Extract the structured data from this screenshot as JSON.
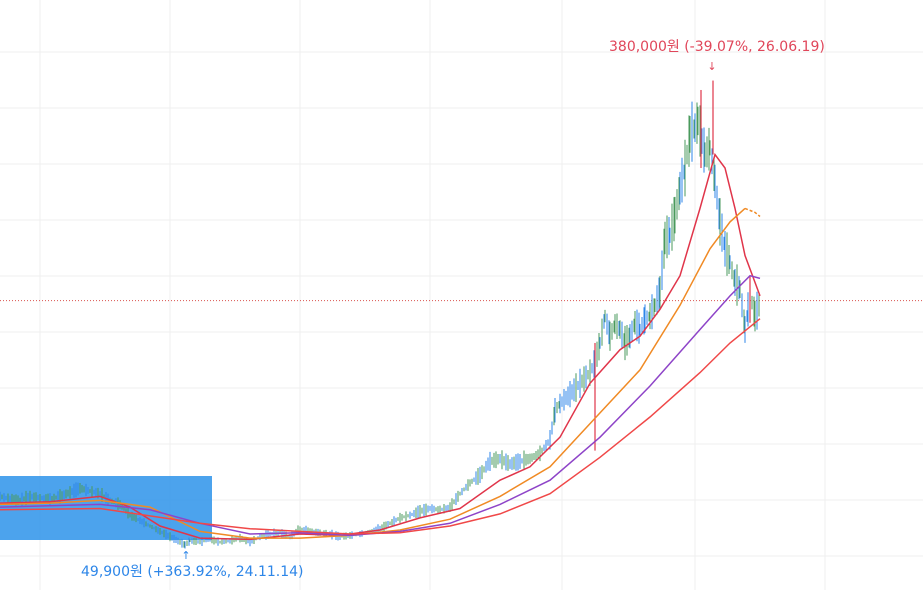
{
  "chart_data": {
    "type": "line",
    "title": "",
    "xlabel": "",
    "ylabel": "",
    "grid": true,
    "legend": "none",
    "ylim": [
      35000,
      440000
    ],
    "current_price": 231500,
    "annotations": {
      "high": {
        "text": "380,000원 (-39.07%, 26.06.19)",
        "value": 380000,
        "arrow": "↓",
        "color": "#e0465a"
      },
      "low": {
        "text": "49,900원 (+363.92%, 24.11.14)",
        "value": 49900,
        "arrow": "↑",
        "color": "#2d86e8"
      }
    },
    "selection_color": "#2d93ea",
    "series": [
      {
        "kind": "price",
        "color": "#2d86e8",
        "x": [
          0,
          10,
          20,
          30,
          40,
          50,
          60,
          70,
          80,
          90,
          100,
          110,
          120,
          130,
          140,
          150,
          160,
          170,
          180,
          185,
          190,
          200,
          210,
          220,
          230,
          240,
          250,
          260,
          270,
          280,
          290,
          300,
          310,
          320,
          330,
          340,
          350,
          360,
          370,
          380,
          390,
          400,
          410,
          420,
          430,
          440,
          450,
          460,
          470,
          480,
          490,
          500,
          510,
          520,
          530,
          540,
          550,
          555,
          560,
          570,
          580,
          590,
          595,
          600,
          605,
          610,
          615,
          620,
          625,
          630,
          635,
          640,
          645,
          650,
          655,
          660,
          665,
          670,
          675,
          680,
          685,
          690,
          695,
          698,
          702,
          705,
          710,
          715,
          720,
          725,
          730,
          735,
          740,
          745,
          748,
          752,
          755,
          760
        ],
        "y": [
          86000,
          84000,
          83000,
          86000,
          85000,
          84000,
          86000,
          89000,
          92000,
          90000,
          88000,
          83000,
          80000,
          72000,
          68000,
          64000,
          60000,
          56000,
          52000,
          49900,
          53000,
          52000,
          54000,
          52000,
          53000,
          55000,
          52000,
          56000,
          58000,
          59000,
          56000,
          62000,
          60000,
          59000,
          58000,
          56000,
          57000,
          58000,
          60000,
          62000,
          66000,
          70000,
          72000,
          75000,
          77000,
          76000,
          78000,
          88000,
          96000,
          102000,
          112000,
          114000,
          110000,
          112000,
          114000,
          118000,
          128000,
          150000,
          155000,
          162000,
          170000,
          178000,
          186000,
          200000,
          220000,
          205000,
          214000,
          210000,
          200000,
          205000,
          215000,
          210000,
          218000,
          220000,
          228000,
          238000,
          278000,
          280000,
          295000,
          315000,
          330000,
          355000,
          360000,
          365000,
          350000,
          340000,
          345000,
          320000,
          290000,
          270000,
          260000,
          245000,
          240000,
          210000,
          225000,
          230000,
          220000,
          230000
        ]
      },
      {
        "kind": "ma",
        "color": "#e0354a",
        "x": [
          0,
          50,
          100,
          130,
          160,
          200,
          250,
          300,
          340,
          380,
          420,
          460,
          500,
          530,
          560,
          590,
          620,
          640,
          660,
          680,
          700,
          715,
          725,
          735,
          745,
          755,
          760
        ],
        "y": [
          81000,
          82000,
          86000,
          78000,
          64000,
          55000,
          54000,
          58000,
          57000,
          61000,
          70000,
          77000,
          98000,
          108000,
          130000,
          170000,
          195000,
          205000,
          225000,
          250000,
          300000,
          340000,
          330000,
          300000,
          265000,
          245000,
          235000
        ]
      },
      {
        "kind": "ma",
        "color": "#f08a24",
        "x": [
          0,
          50,
          100,
          150,
          200,
          250,
          300,
          350,
          400,
          450,
          500,
          550,
          600,
          640,
          680,
          710,
          730,
          745,
          755,
          760
        ],
        "y": [
          80000,
          81000,
          83000,
          78000,
          60000,
          55000,
          55000,
          57000,
          61000,
          69000,
          86000,
          108000,
          148000,
          180000,
          228000,
          270000,
          290000,
          300000,
          297000,
          294000
        ],
        "dashed_from": 745
      },
      {
        "kind": "ma",
        "color": "#8e44c8",
        "x": [
          0,
          100,
          150,
          200,
          250,
          300,
          350,
          400,
          450,
          500,
          550,
          600,
          650,
          700,
          730,
          750,
          760
        ],
        "y": [
          78000,
          80000,
          76000,
          66000,
          58000,
          59000,
          57000,
          60000,
          66000,
          80000,
          98000,
          130000,
          168000,
          210000,
          235000,
          250000,
          248000
        ]
      },
      {
        "kind": "ma",
        "color": "#f04848",
        "x": [
          0,
          100,
          200,
          250,
          300,
          350,
          400,
          450,
          500,
          550,
          600,
          650,
          700,
          730,
          750,
          760
        ],
        "y": [
          76000,
          77000,
          66000,
          62000,
          60000,
          58000,
          59000,
          64000,
          73000,
          88000,
          115000,
          145000,
          178000,
          200000,
          212000,
          218000
        ]
      }
    ]
  }
}
